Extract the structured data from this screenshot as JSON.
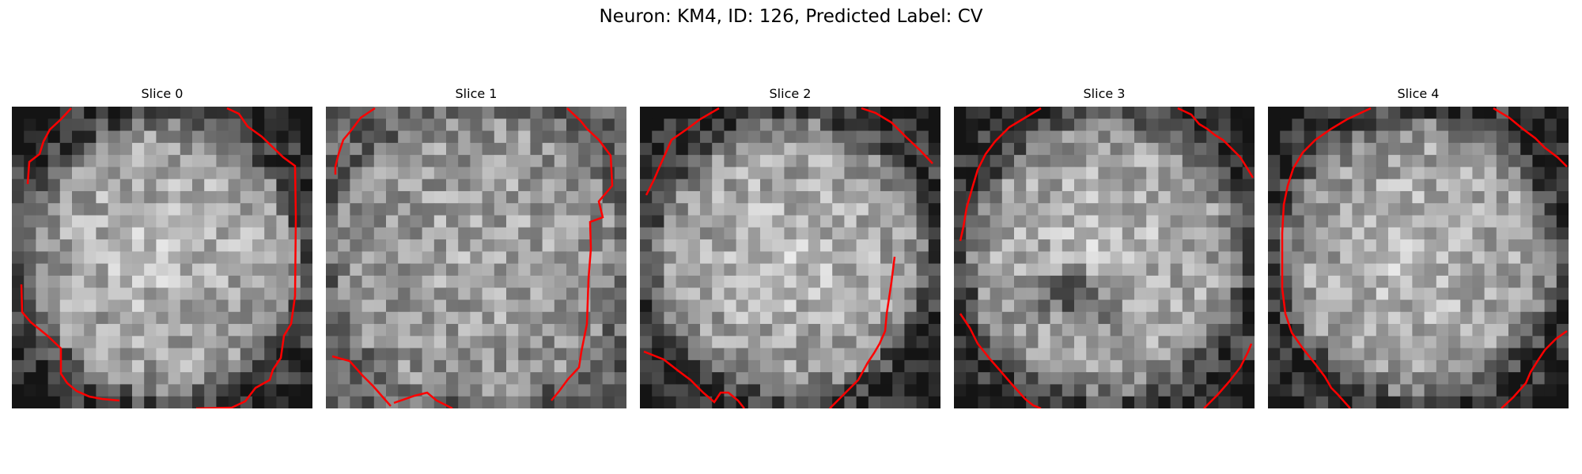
{
  "figure": {
    "title": "Neuron: KM4, ID: 126, Predicted Label: CV",
    "contour_color": "#ff0000",
    "colormap": "gray",
    "panels": [
      {
        "title": "Slice 0",
        "seed": 11,
        "pattern": "ring-bright"
      },
      {
        "title": "Slice 1",
        "seed": 23,
        "pattern": "noisy"
      },
      {
        "title": "Slice 2",
        "seed": 37,
        "pattern": "ring-bright"
      },
      {
        "title": "Slice 3",
        "seed": 41,
        "pattern": "dark-blob"
      },
      {
        "title": "Slice 4",
        "seed": 59,
        "pattern": "ring-bright"
      }
    ]
  }
}
